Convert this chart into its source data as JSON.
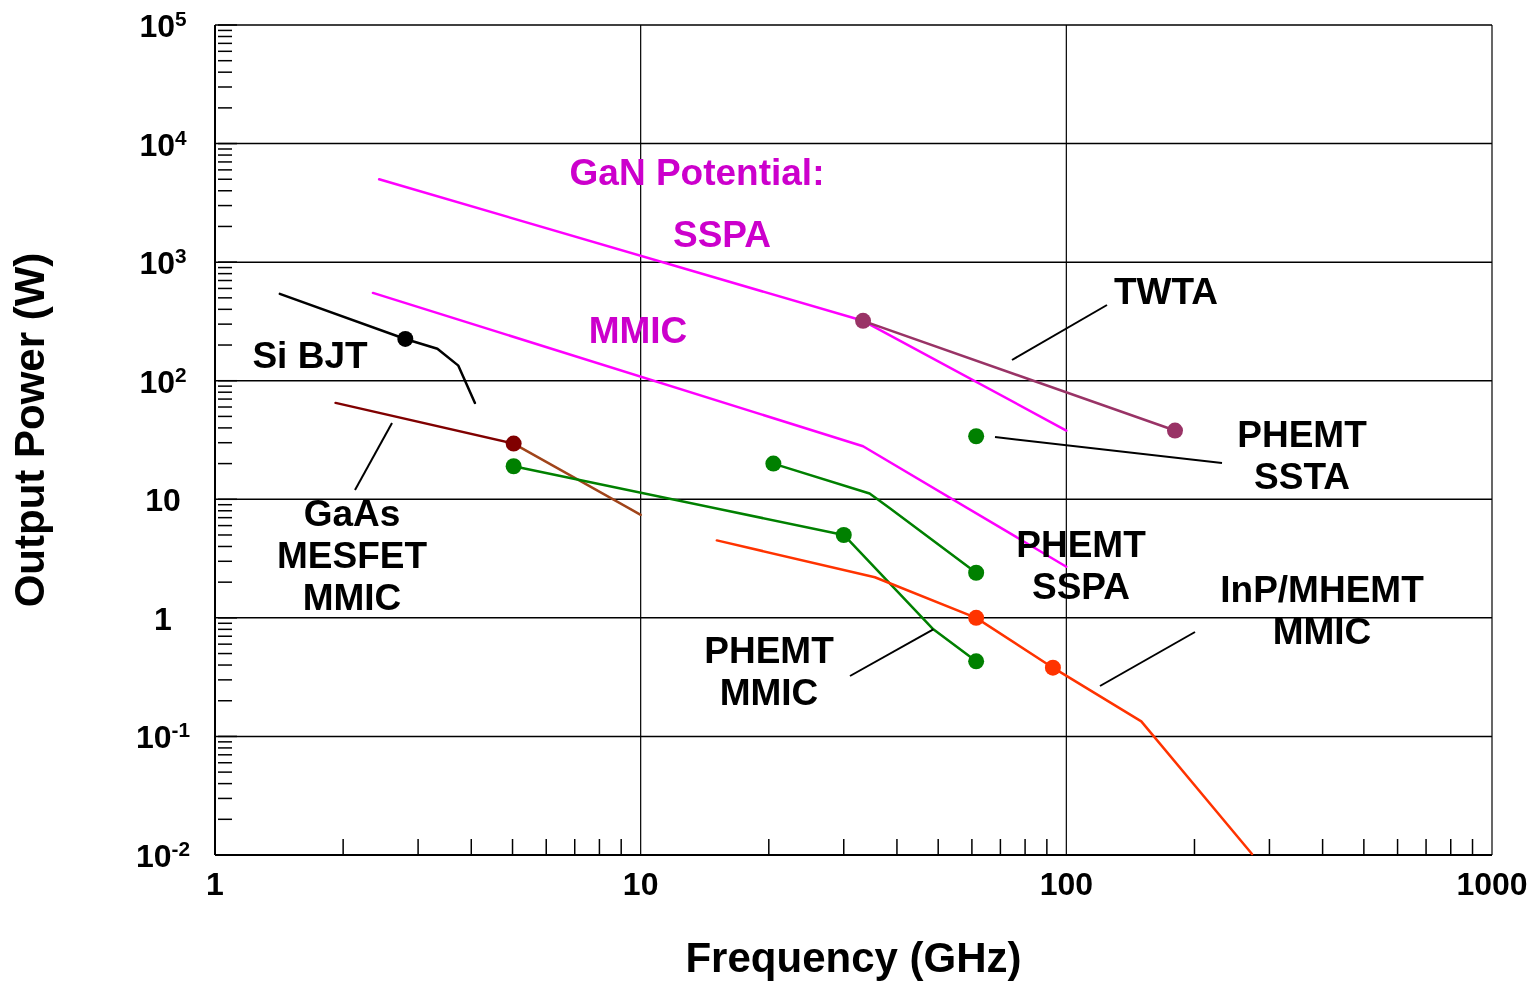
{
  "chart_data": {
    "type": "line",
    "xlabel": "Frequency (GHz)",
    "ylabel": "Output Power (W)",
    "log": "xy",
    "grid": true,
    "marker": "none",
    "xlim": [
      1,
      1000
    ],
    "ylim": [
      0.01,
      100000
    ],
    "xticks": [
      1,
      {
        "value": 2,
        "label": null
      },
      {
        "value": 3,
        "label": null
      },
      {
        "value": 4,
        "label": null
      },
      {
        "value": 5,
        "label": null
      },
      {
        "value": 6,
        "label": null
      },
      {
        "value": 7,
        "label": null
      },
      {
        "value": 8,
        "label": null
      },
      {
        "value": 9,
        "label": null
      },
      10,
      {
        "value": 20,
        "label": null
      },
      {
        "value": 30,
        "label": null
      },
      {
        "value": 40,
        "label": null
      },
      {
        "value": 50,
        "label": null
      },
      {
        "value": 60,
        "label": null
      },
      {
        "value": 70,
        "label": null
      },
      {
        "value": 80,
        "label": null
      },
      {
        "value": 90,
        "label": null
      },
      100,
      {
        "value": 200,
        "label": null
      },
      {
        "value": 300,
        "label": null
      },
      {
        "value": 400,
        "label": null
      },
      {
        "value": 500,
        "label": null
      },
      {
        "value": 600,
        "label": null
      },
      {
        "value": 700,
        "label": null
      },
      {
        "value": 800,
        "label": null
      },
      {
        "value": 900,
        "label": null
      },
      1000
    ],
    "yticks": [
      {
        "value": 0.01,
        "label": "10$^{-2}$"
      },
      {
        "value": 0.02,
        "label": null
      },
      {
        "value": 0.03,
        "label": null
      },
      {
        "value": 0.04,
        "label": null
      },
      {
        "value": 0.05,
        "label": null
      },
      {
        "value": 0.06,
        "label": null
      },
      {
        "value": 0.07,
        "label": null
      },
      {
        "value": 0.08,
        "label": null
      },
      {
        "value": 0.09,
        "label": null
      },
      {
        "value": 0.1,
        "label": "10$^{-1}$"
      },
      {
        "value": 0.2,
        "label": null
      },
      {
        "value": 0.3,
        "label": null
      },
      {
        "value": 0.4,
        "label": null
      },
      {
        "value": 0.5,
        "label": null
      },
      {
        "value": 0.6,
        "label": null
      },
      {
        "value": 0.7,
        "label": null
      },
      {
        "value": 0.8,
        "label": null
      },
      {
        "value": 0.9,
        "label": null
      },
      1,
      {
        "value": 2,
        "label": null
      },
      {
        "value": 3,
        "label": null
      },
      {
        "value": 4,
        "label": null
      },
      {
        "value": 5,
        "label": null
      },
      {
        "value": 6,
        "label": null
      },
      {
        "value": 7,
        "label": null
      },
      {
        "value": 8,
        "label": null
      },
      {
        "value": 9,
        "label": null
      },
      10,
      {
        "value": 20,
        "label": null
      },
      {
        "value": 30,
        "label": null
      },
      {
        "value": 40,
        "label": null
      },
      {
        "value": 50,
        "label": null
      },
      {
        "value": 60,
        "label": null
      },
      {
        "value": 70,
        "label": null
      },
      {
        "value": 80,
        "label": null
      },
      {
        "value": 90,
        "label": null
      },
      {
        "value": 100,
        "label": "10$^{2}$"
      },
      {
        "value": 200,
        "label": null
      },
      {
        "value": 300,
        "label": null
      },
      {
        "value": 400,
        "label": null
      },
      {
        "value": 500,
        "label": null
      },
      {
        "value": 600,
        "label": null
      },
      {
        "value": 700,
        "label": null
      },
      {
        "value": 800,
        "label": null
      },
      {
        "value": 900,
        "label": null
      },
      {
        "value": 1000,
        "label": "10$^{3}$"
      },
      {
        "value": 2000,
        "label": null
      },
      {
        "value": 3000,
        "label": null
      },
      {
        "value": 4000,
        "label": null
      },
      {
        "value": 5000,
        "label": null
      },
      {
        "value": 6000,
        "label": null
      },
      {
        "value": 7000,
        "label": null
      },
      {
        "value": 8000,
        "label": null
      },
      {
        "value": 9000,
        "label": null
      },
      {
        "value": 10000,
        "label": "10$^{4}$"
      },
      {
        "value": 20000,
        "label": null
      },
      {
        "value": 30000,
        "label": null
      },
      {
        "value": 40000,
        "label": null
      },
      {
        "value": 50000,
        "label": null
      },
      {
        "value": 60000,
        "label": null
      },
      {
        "value": 70000,
        "label": null
      },
      {
        "value": 80000,
        "label": null
      },
      {
        "value": 90000,
        "label": null
      },
      {
        "value": 100000,
        "label": "10$^{5}$"
      }
    ],
    "series": [
      {
        "type": "line",
        "color": "#000000",
        "x": [
          1.42,
          2.8,
          3.33,
          3.73,
          4.08
        ],
        "values": [
          540,
          225,
          186,
          134,
          65
        ]
      },
      {
        "type": "scatter",
        "marker": "circle",
        "color": "#000000",
        "x": [
          2.8
        ],
        "values": [
          225
        ]
      },
      {
        "type": "line",
        "color": "#800000",
        "x": [
          1.92,
          5.03
        ],
        "values": [
          65,
          29.5
        ]
      },
      {
        "type": "line",
        "color": "#a0441a",
        "x": [
          5.03,
          10
        ],
        "values": [
          29.5,
          7.4
        ]
      },
      {
        "type": "scatter",
        "marker": "circle",
        "color": "#800000",
        "x": [
          5.03
        ],
        "values": [
          29.5
        ]
      },
      {
        "type": "line",
        "color": "#ff00ff",
        "x": [
          2.43,
          33.3,
          100
        ],
        "values": [
          5000,
          320,
          38
        ]
      },
      {
        "type": "line",
        "color": "#ff00ff",
        "x": [
          2.35,
          33.3,
          100
        ],
        "values": [
          550,
          28,
          2.7
        ]
      },
      {
        "type": "line",
        "color": "#993366",
        "x": [
          33.3,
          180
        ],
        "values": [
          320,
          38
        ]
      },
      {
        "type": "scatter",
        "marker": "circle",
        "color": "#993366",
        "x": [
          33.3,
          180
        ],
        "values": [
          320,
          38
        ]
      },
      {
        "type": "scatter",
        "marker": "circle",
        "color": "#008000",
        "x": [
          61.4
        ],
        "values": [
          34
        ]
      },
      {
        "type": "line",
        "color": "#008000",
        "x": [
          20.5,
          34.5,
          38.5,
          61.4
        ],
        "values": [
          20,
          11.2,
          8.4,
          2.4
        ]
      },
      {
        "type": "scatter",
        "marker": "circle",
        "color": "#008000",
        "x": [
          20.5,
          61.4
        ],
        "values": [
          20,
          2.4
        ]
      },
      {
        "type": "line",
        "color": "#008000",
        "x": [
          5.03,
          30,
          48.7,
          61.4
        ],
        "values": [
          19,
          5,
          0.8,
          0.43
        ]
      },
      {
        "type": "scatter",
        "marker": "circle",
        "color": "#008000",
        "x": [
          5.03,
          30,
          61.4
        ],
        "values": [
          19,
          5,
          0.43
        ]
      },
      {
        "type": "line",
        "color": "#ff3300",
        "x": [
          15.1,
          35.5,
          61.4,
          93,
          150,
          273
        ],
        "values": [
          4.5,
          2.2,
          1.0,
          0.38,
          0.134,
          0.0102
        ]
      },
      {
        "type": "scatter",
        "marker": "circle",
        "color": "#ff3300",
        "x": [
          61.4,
          93
        ],
        "values": [
          1.0,
          0.38
        ]
      }
    ],
    "annotations": [
      "GaN Potential:",
      "SSPA",
      "MMIC",
      "Si BJT",
      "TWTA",
      "PHEMT\nSSTA",
      "GaAs\nMESFET\nMMIC",
      "PHEMT\nSSPA",
      "InP/MHEMT\nMMIC",
      {
        "text": "PHEMT\nMMIC",
        "x": 48.7,
        "y": 0.8
      }
    ]
  }
}
